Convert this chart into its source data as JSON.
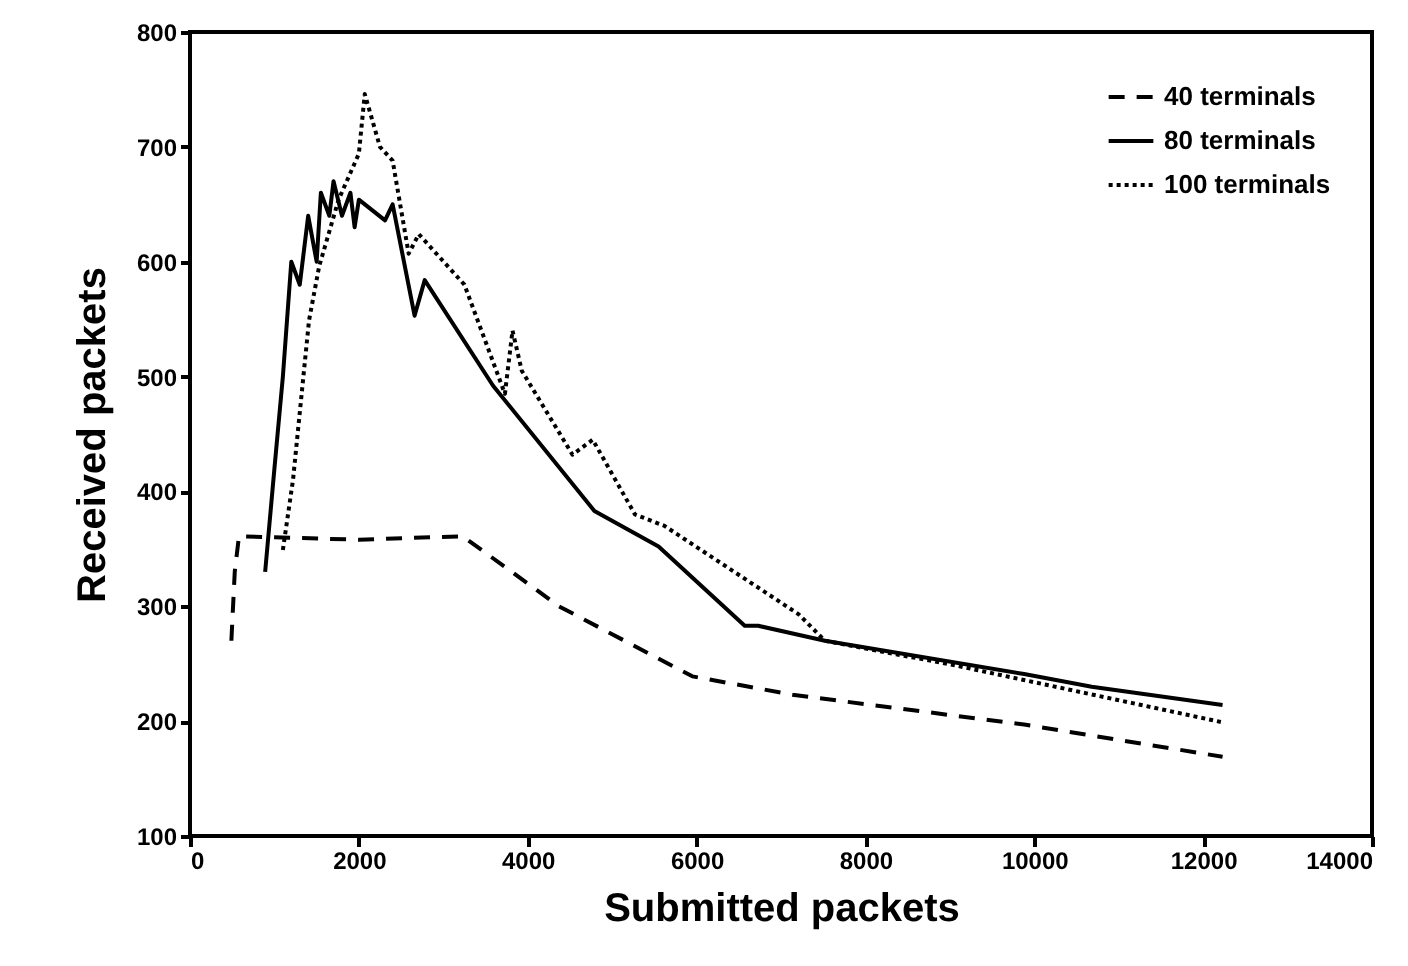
{
  "chart_data": {
    "type": "line",
    "xlabel": "Submitted packets",
    "ylabel": "Received packets",
    "xlim": [
      0,
      14000
    ],
    "ylim": [
      100,
      800
    ],
    "xticks": [
      0,
      2000,
      4000,
      6000,
      8000,
      10000,
      12000,
      14000
    ],
    "yticks": [
      100,
      200,
      300,
      400,
      500,
      600,
      700,
      800
    ],
    "grid": false,
    "legend": "top right",
    "marker": "none",
    "series": [
      {
        "name": "40 terminals",
        "color": "#000000",
        "line_style": "dashed",
        "x": [
          490,
          530,
          580,
          1000,
          2000,
          3230,
          4370,
          5950,
          7135,
          9880,
          12230
        ],
        "values": [
          270,
          330,
          361,
          360,
          358,
          361,
          300,
          239,
          223,
          197,
          169
        ]
      },
      {
        "name": "80 terminals",
        "color": "#000000",
        "line_style": "solid",
        "x": [
          890,
          1000,
          1100,
          1200,
          1300,
          1400,
          1500,
          1550,
          1650,
          1700,
          1800,
          1900,
          1950,
          2000,
          2310,
          2400,
          2660,
          2780,
          3590,
          4790,
          5550,
          6570,
          6730,
          7520,
          9880,
          10680,
          12230
        ],
        "values": [
          330,
          420,
          500,
          600,
          580,
          640,
          600,
          660,
          640,
          670,
          640,
          660,
          630,
          654,
          636,
          650,
          553,
          584,
          492,
          383,
          352,
          283,
          283,
          270,
          241,
          230,
          214
        ]
      },
      {
        "name": "100 terminals",
        "color": "#000000",
        "line_style": "dotted",
        "x": [
          1100,
          1220,
          1410,
          1530,
          1760,
          2000,
          2070,
          2250,
          2400,
          2590,
          2710,
          3250,
          3730,
          3820,
          3930,
          4530,
          4770,
          5270,
          5620,
          7210,
          7520,
          9100,
          12230
        ],
        "values": [
          349,
          410,
          549,
          596,
          654,
          694,
          746,
          700,
          688,
          607,
          624,
          580,
          485,
          540,
          505,
          432,
          445,
          380,
          370,
          293,
          270,
          248,
          199
        ]
      }
    ]
  }
}
